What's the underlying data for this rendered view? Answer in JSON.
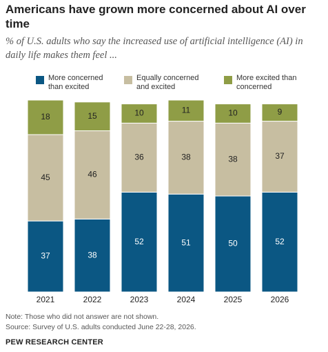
{
  "chart_data": {
    "type": "stacked_bar",
    "title": "Americans have grown more concerned about AI over time",
    "subtitle": "% of U.S. adults who say the increased use of artificial intelligence (AI) in daily life makes them feel ...",
    "categories": [
      "2021",
      "2022",
      "2023",
      "2024",
      "2025",
      "2026"
    ],
    "series": [
      {
        "name": "More concerned than excited",
        "color": "#0b5783",
        "values": [
          37,
          38,
          52,
          51,
          50,
          52
        ]
      },
      {
        "name": "Equally concerned and excited",
        "color": "#c7bea1",
        "values": [
          45,
          46,
          36,
          38,
          38,
          37
        ]
      },
      {
        "name": "More excited than concerned",
        "color": "#8f9d46",
        "values": [
          18,
          15,
          10,
          11,
          10,
          9
        ]
      }
    ],
    "ylim": [
      0,
      100
    ],
    "notes": [
      "Note: Those who did not answer are not shown.",
      "Source: Survey of U.S. adults conducted June 22-28, 2026."
    ],
    "source_org": "PEW RESEARCH CENTER"
  }
}
